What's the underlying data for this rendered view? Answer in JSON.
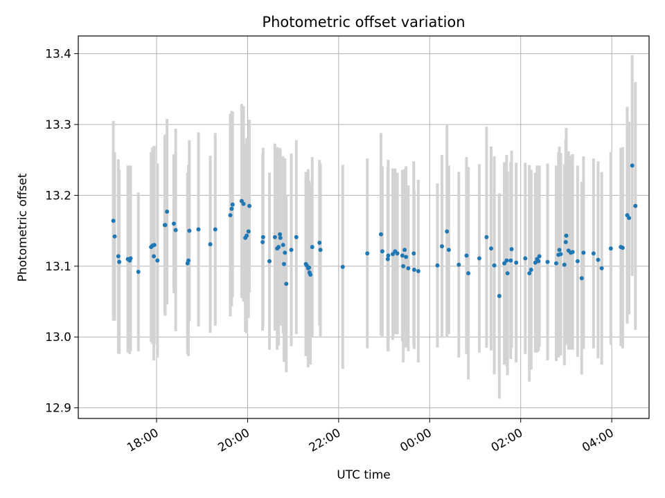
{
  "chart_data": {
    "type": "scatter",
    "title": "Photometric offset variation",
    "xlabel": "UTC time",
    "ylabel": "Photometric offset",
    "x_start_time": "17:00",
    "xlim_hours": [
      -0.72,
      11.82
    ],
    "ylim": [
      12.885,
      13.425
    ],
    "grid": true,
    "x_ticks": [
      {
        "hour": 1,
        "label": "18:00"
      },
      {
        "hour": 3,
        "label": "20:00"
      },
      {
        "hour": 5,
        "label": "22:00"
      },
      {
        "hour": 7,
        "label": "00:00"
      },
      {
        "hour": 9,
        "label": "02:00"
      },
      {
        "hour": 11,
        "label": "04:00"
      }
    ],
    "y_ticks": [
      {
        "value": 12.9,
        "label": "12.9"
      },
      {
        "value": 13.0,
        "label": "13.0"
      },
      {
        "value": 13.1,
        "label": "13.1"
      },
      {
        "value": 13.2,
        "label": "13.2"
      },
      {
        "value": 13.3,
        "label": "13.3"
      },
      {
        "value": 13.4,
        "label": "13.4"
      }
    ],
    "colors": {
      "point": "#1f77b4",
      "errorbar": "#d3d3d3",
      "grid": "#b0b0b0",
      "axes": "#000000"
    },
    "points": [
      [
        0.05,
        13.164,
        0.141
      ],
      [
        0.08,
        13.142,
        0.119
      ],
      [
        0.16,
        13.114,
        0.137
      ],
      [
        0.18,
        13.106,
        0.13
      ],
      [
        0.37,
        13.11,
        0.132
      ],
      [
        0.41,
        13.108,
        0.132
      ],
      [
        0.43,
        13.111,
        0.131
      ],
      [
        0.6,
        13.092,
        0.112
      ],
      [
        0.88,
        13.127,
        0.134
      ],
      [
        0.91,
        13.129,
        0.139
      ],
      [
        0.94,
        13.114,
        0.147
      ],
      [
        0.95,
        13.13,
        0.14
      ],
      [
        1.02,
        13.108,
        0.137
      ],
      [
        1.18,
        13.158,
        0.125
      ],
      [
        1.19,
        13.158,
        0.128
      ],
      [
        1.23,
        13.177,
        0.131
      ],
      [
        1.38,
        13.16,
        0.098
      ],
      [
        1.42,
        13.151,
        0.143
      ],
      [
        1.68,
        13.104,
        0.128
      ],
      [
        1.7,
        13.108,
        0.135
      ],
      [
        1.72,
        13.15,
        0.128
      ],
      [
        1.92,
        13.152,
        0.137
      ],
      [
        2.18,
        13.131,
        0.125
      ],
      [
        2.29,
        13.152,
        0.136
      ],
      [
        2.62,
        13.172,
        0.143
      ],
      [
        2.65,
        13.181,
        0.138
      ],
      [
        2.67,
        13.187,
        0.131
      ],
      [
        2.87,
        13.192,
        0.137
      ],
      [
        2.91,
        13.188,
        0.138
      ],
      [
        2.95,
        13.14,
        0.133
      ],
      [
        2.98,
        13.143,
        0.138
      ],
      [
        3.02,
        13.149,
        0.122
      ],
      [
        3.04,
        13.185,
        0.122
      ],
      [
        3.33,
        13.134,
        0.125
      ],
      [
        3.34,
        13.141,
        0.126
      ],
      [
        3.48,
        13.107,
        0.125
      ],
      [
        3.6,
        13.141,
        0.132
      ],
      [
        3.65,
        13.125,
        0.143
      ],
      [
        3.68,
        13.127,
        0.139
      ],
      [
        3.71,
        13.145,
        0.122
      ],
      [
        3.72,
        13.14,
        0.124
      ],
      [
        3.78,
        13.13,
        0.125
      ],
      [
        3.8,
        13.103,
        0.138
      ],
      [
        3.82,
        13.119,
        0.133
      ],
      [
        3.85,
        13.075,
        0.125
      ],
      [
        3.96,
        13.123,
        0.136
      ],
      [
        4.07,
        13.141,
        0.137
      ],
      [
        4.28,
        13.103,
        0.13
      ],
      [
        4.3,
        13.101,
        0.128
      ],
      [
        4.33,
        13.097,
        0.14
      ],
      [
        4.35,
        13.098,
        0.123
      ],
      [
        4.36,
        13.091,
        0.126
      ],
      [
        4.38,
        13.088,
        0.127
      ],
      [
        4.42,
        13.127,
        0.127
      ],
      [
        4.58,
        13.133,
        0.117
      ],
      [
        4.6,
        13.123,
        0.122
      ],
      [
        5.09,
        13.099,
        0.144
      ],
      [
        5.63,
        13.118,
        0.134
      ],
      [
        5.93,
        13.145,
        0.143
      ],
      [
        5.96,
        13.121,
        0.12
      ],
      [
        6.08,
        13.11,
        0.13
      ],
      [
        6.09,
        13.115,
        0.135
      ],
      [
        6.19,
        13.117,
        0.121
      ],
      [
        6.24,
        13.121,
        0.117
      ],
      [
        6.29,
        13.118,
        0.114
      ],
      [
        6.4,
        13.115,
        0.121
      ],
      [
        6.42,
        13.1,
        0.136
      ],
      [
        6.45,
        13.123,
        0.114
      ],
      [
        6.48,
        13.113,
        0.128
      ],
      [
        6.53,
        13.097,
        0.117
      ],
      [
        6.65,
        13.118,
        0.13
      ],
      [
        6.66,
        13.095,
        0.112
      ],
      [
        6.75,
        13.093,
        0.129
      ],
      [
        7.17,
        13.101,
        0.116
      ],
      [
        7.27,
        13.128,
        0.129
      ],
      [
        7.38,
        13.149,
        0.15
      ],
      [
        7.42,
        13.123,
        0.119
      ],
      [
        7.64,
        13.102,
        0.131
      ],
      [
        7.81,
        13.115,
        0.139
      ],
      [
        7.85,
        13.09,
        0.15
      ],
      [
        8.09,
        13.111,
        0.133
      ],
      [
        8.25,
        13.141,
        0.156
      ],
      [
        8.35,
        13.125,
        0.144
      ],
      [
        8.42,
        13.101,
        0.154
      ],
      [
        8.53,
        13.058,
        0.145
      ],
      [
        8.64,
        13.104,
        0.143
      ],
      [
        8.69,
        13.108,
        0.149
      ],
      [
        8.71,
        13.09,
        0.144
      ],
      [
        8.78,
        13.108,
        0.139
      ],
      [
        8.8,
        13.124,
        0.139
      ],
      [
        8.9,
        13.105,
        0.141
      ],
      [
        9.1,
        13.111,
        0.135
      ],
      [
        9.19,
        13.09,
        0.153
      ],
      [
        9.23,
        13.095,
        0.141
      ],
      [
        9.32,
        13.105,
        0.127
      ],
      [
        9.36,
        13.11,
        0.132
      ],
      [
        9.39,
        13.107,
        0.127
      ],
      [
        9.41,
        13.114,
        0.128
      ],
      [
        9.59,
        13.106,
        0.139
      ],
      [
        9.78,
        13.104,
        0.138
      ],
      [
        9.83,
        13.116,
        0.145
      ],
      [
        9.85,
        13.123,
        0.146
      ],
      [
        9.88,
        13.117,
        0.143
      ],
      [
        9.96,
        13.102,
        0.142
      ],
      [
        9.99,
        13.134,
        0.145
      ],
      [
        10.0,
        13.143,
        0.152
      ],
      [
        10.05,
        13.122,
        0.14
      ],
      [
        10.1,
        13.119,
        0.137
      ],
      [
        10.14,
        13.12,
        0.138
      ],
      [
        10.25,
        13.107,
        0.135
      ],
      [
        10.34,
        13.083,
        0.136
      ],
      [
        10.38,
        13.119,
        0.136
      ],
      [
        10.6,
        13.118,
        0.134
      ],
      [
        10.7,
        13.109,
        0.139
      ],
      [
        10.78,
        13.097,
        0.136
      ],
      [
        10.98,
        13.125,
        0.136
      ],
      [
        11.2,
        13.127,
        0.14
      ],
      [
        11.24,
        13.126,
        0.142
      ],
      [
        11.34,
        13.172,
        0.153
      ],
      [
        11.38,
        13.168,
        0.136
      ],
      [
        11.45,
        13.242,
        0.156
      ],
      [
        11.52,
        13.185,
        0.175
      ]
    ]
  }
}
